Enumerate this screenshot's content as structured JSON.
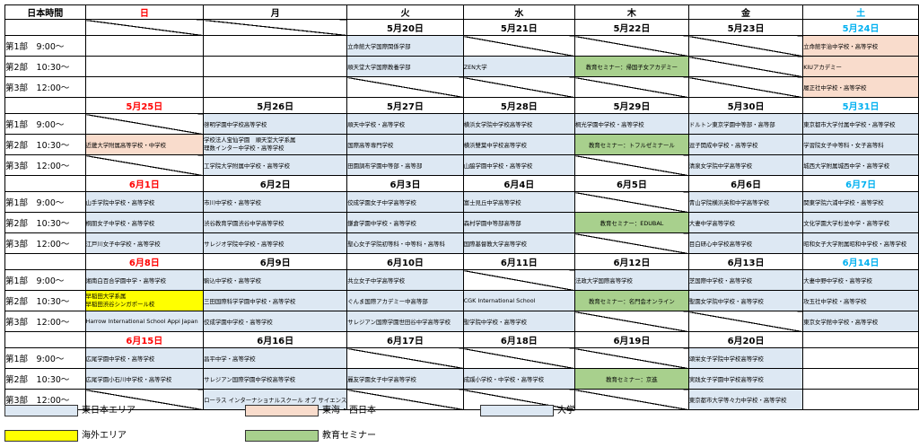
{
  "header": {
    "label": "日本時間",
    "days": [
      "日",
      "月",
      "火",
      "水",
      "木",
      "金",
      "土"
    ]
  },
  "weeks": [
    {
      "dates": [
        "",
        "",
        "5月20日",
        "5月21日",
        "5月22日",
        "5月23日",
        "5月24日"
      ],
      "slots": [
        {
          "label": "第1部　9:00～",
          "cells": [
            {
              "t": "",
              "c": ""
            },
            {
              "t": "",
              "c": ""
            },
            {
              "t": "立命館大学国際関係学部",
              "c": "univ"
            },
            {
              "t": "",
              "c": "slash"
            },
            {
              "t": "",
              "c": "slash"
            },
            {
              "t": "",
              "c": "slash"
            },
            {
              "t": "立命館宇治中学校・高等学校",
              "c": "west"
            }
          ]
        },
        {
          "label": "第2部　10:30～",
          "cells": [
            {
              "t": "",
              "c": ""
            },
            {
              "t": "",
              "c": ""
            },
            {
              "t": "順天堂大学国際教養学部",
              "c": "univ"
            },
            {
              "t": "ZEN大学",
              "c": "univ"
            },
            {
              "t": "教育セミナー：帰国子女アカデミー",
              "c": "sem"
            },
            {
              "t": "",
              "c": "slash"
            },
            {
              "t": "KIUアカデミー",
              "c": "west"
            }
          ]
        },
        {
          "label": "第3部　12:00～",
          "cells": [
            {
              "t": "",
              "c": ""
            },
            {
              "t": "",
              "c": ""
            },
            {
              "t": "",
              "c": "slash"
            },
            {
              "t": "",
              "c": "slash"
            },
            {
              "t": "",
              "c": "slash"
            },
            {
              "t": "",
              "c": "slash"
            },
            {
              "t": "履正社中学校・高等学校",
              "c": "west"
            }
          ]
        }
      ]
    },
    {
      "dates": [
        "5月25日",
        "5月26日",
        "5月27日",
        "5月28日",
        "5月29日",
        "5月30日",
        "5月31日"
      ],
      "slots": [
        {
          "label": "第1部　9:00～",
          "cells": [
            {
              "t": "",
              "c": "slash"
            },
            {
              "t": "啓明学園中学校高等学校",
              "c": "east"
            },
            {
              "t": "順天中学校・高等学校",
              "c": "east"
            },
            {
              "t": "横浜女学院中学校高等学校",
              "c": "east"
            },
            {
              "t": "桐光学園中学校・高等学校",
              "c": "east"
            },
            {
              "t": "ドルトン東京学園中等部・高等部",
              "c": "east"
            },
            {
              "t": "東京都市大学付属中学校・高等学校",
              "c": "east"
            }
          ]
        },
        {
          "label": "第2部　10:30～",
          "cells": [
            {
              "t": "近畿大学附属高等学校・中学校",
              "c": "west"
            },
            {
              "t": "学校法人宝仙学園　順天堂大学系属\n理数インター中学校・高等学校",
              "c": "east two"
            },
            {
              "t": "国際高等専門学校",
              "c": "east"
            },
            {
              "t": "横浜雙葉中学校高等学校",
              "c": "east"
            },
            {
              "t": "教育セミナー：トフルゼミナール",
              "c": "sem"
            },
            {
              "t": "逗子開成中学校・高等学校",
              "c": "east"
            },
            {
              "t": "学習院女子中等科・女子高等科",
              "c": "east"
            }
          ]
        },
        {
          "label": "第3部　12:00～",
          "cells": [
            {
              "t": "",
              "c": "slash"
            },
            {
              "t": "工学院大学附属中学校・高等学校",
              "c": "east"
            },
            {
              "t": "田園調布学園中等部・高等部",
              "c": "east"
            },
            {
              "t": "山脇学園中学校・高等学校",
              "c": "east"
            },
            {
              "t": "",
              "c": "slash"
            },
            {
              "t": "清泉女学院中学高等学校",
              "c": "east"
            },
            {
              "t": "城西大学附属城西中学・高等学校",
              "c": "east"
            }
          ]
        }
      ]
    },
    {
      "dates": [
        "6月1日",
        "6月2日",
        "6月3日",
        "6月4日",
        "6月5日",
        "6月6日",
        "6月7日"
      ],
      "slots": [
        {
          "label": "第1部　9:00～",
          "cells": [
            {
              "t": "山手学院中学校・高等学校",
              "c": "east"
            },
            {
              "t": "市川中学校・高等学校",
              "c": "east"
            },
            {
              "t": "佼成学園女子中学高等学校",
              "c": "east"
            },
            {
              "t": "富士見丘中学高等学校",
              "c": "east"
            },
            {
              "t": "",
              "c": "slash"
            },
            {
              "t": "青山学院横浜英和中学高等学校",
              "c": "east"
            },
            {
              "t": "関東学院六浦中学校・高等学校",
              "c": "east"
            }
          ]
        },
        {
          "label": "第2部　10:30～",
          "cells": [
            {
              "t": "桐朋女子中学校・高等学校",
              "c": "east"
            },
            {
              "t": "渋谷教育学園渋谷中学高等学校",
              "c": "east"
            },
            {
              "t": "鎌倉学園中学校・高等学校",
              "c": "east"
            },
            {
              "t": "森村学園中等部高等部",
              "c": "east"
            },
            {
              "t": "教育セミナー：EDUBAL",
              "c": "sem"
            },
            {
              "t": "大妻中学高等学校",
              "c": "east"
            },
            {
              "t": "文化学園大学杉並中学・高等学校",
              "c": "east"
            }
          ]
        },
        {
          "label": "第3部　12:00～",
          "cells": [
            {
              "t": "江戸川女子中学校・高等学校",
              "c": "east"
            },
            {
              "t": "サレジオ学院中学校・高等学校",
              "c": "east"
            },
            {
              "t": "聖心女子学院初等科・中等科・高等科",
              "c": "east"
            },
            {
              "t": "国際基督教大学高等学校",
              "c": "east"
            },
            {
              "t": "",
              "c": "slash"
            },
            {
              "t": "目白研心中学校高等学校",
              "c": "east"
            },
            {
              "t": "昭和女子大学附属昭和中学校・高等学校",
              "c": "east"
            }
          ]
        }
      ]
    },
    {
      "dates": [
        "6月8日",
        "6月9日",
        "6月10日",
        "6月11日",
        "6月12日",
        "6月13日",
        "6月14日"
      ],
      "slots": [
        {
          "label": "第1部　9:00～",
          "cells": [
            {
              "t": "湘南白百合学園中学・高等学校",
              "c": "east"
            },
            {
              "t": "駒込中学校・高等学校",
              "c": "east"
            },
            {
              "t": "共立女子中学高等学校",
              "c": "east"
            },
            {
              "t": "",
              "c": "slash"
            },
            {
              "t": "法政大学国際高等学校",
              "c": "east"
            },
            {
              "t": "芝国際中学校・高等学校",
              "c": "east"
            },
            {
              "t": "大妻中野中学校・高等学校",
              "c": "east"
            }
          ]
        },
        {
          "label": "第2部　10:30～",
          "cells": [
            {
              "t": "早稲田大学系属\n早稲田渋谷シンガポール校",
              "c": "intl two"
            },
            {
              "t": "三田国際科学学園中学校・高等学校",
              "c": "east"
            },
            {
              "t": "ぐんま国際アカデミー中高等部",
              "c": "east"
            },
            {
              "t": "CGK International School",
              "c": "east"
            },
            {
              "t": "教育セミナー：名門会オンライン",
              "c": "sem"
            },
            {
              "t": "聖園女学院中学校・高等学校",
              "c": "east"
            },
            {
              "t": "攻玉社中学校・高等学校",
              "c": "east"
            }
          ]
        },
        {
          "label": "第3部　12:00～",
          "cells": [
            {
              "t": "Harrow International School Appi Japan",
              "c": "east"
            },
            {
              "t": "佼成学園中学校・高等学校",
              "c": "east"
            },
            {
              "t": "サレジアン国際学園世田谷中学高等学校",
              "c": "east"
            },
            {
              "t": "聖学院中学校・高等学校",
              "c": "east"
            },
            {
              "t": "",
              "c": "slash"
            },
            {
              "t": "",
              "c": "slash"
            },
            {
              "t": "東京女学館中学校・高等学校",
              "c": "east"
            }
          ]
        }
      ]
    },
    {
      "dates": [
        "6月15日",
        "6月16日",
        "6月17日",
        "6月18日",
        "6月19日",
        "6月20日",
        ""
      ],
      "slots": [
        {
          "label": "第1部　9:00～",
          "cells": [
            {
              "t": "広尾学園中学校・高等学校",
              "c": "east"
            },
            {
              "t": "昌平中学・高等学校",
              "c": "east"
            },
            {
              "t": "",
              "c": "slash"
            },
            {
              "t": "",
              "c": "slash"
            },
            {
              "t": "",
              "c": "slash"
            },
            {
              "t": "頌栄女子学院中学校高等学校",
              "c": "east"
            },
            {
              "t": "",
              "c": ""
            }
          ]
        },
        {
          "label": "第2部　10:30～",
          "cells": [
            {
              "t": "広尾学園小石川中学校・高等学校",
              "c": "east"
            },
            {
              "t": "サレジアン国際学園中学校高等学校",
              "c": "east"
            },
            {
              "t": "麗友学園女子中学高等学校",
              "c": "east"
            },
            {
              "t": "成蹊小学校・中学校・高等学校",
              "c": "east"
            },
            {
              "t": "教育セミナー：京進",
              "c": "sem"
            },
            {
              "t": "実践女子学園中学校高等学校",
              "c": "east"
            },
            {
              "t": "",
              "c": ""
            }
          ]
        },
        {
          "label": "第3部　12:00～",
          "cells": [
            {
              "t": "",
              "c": "slash"
            },
            {
              "t": "ローラス インターナショナルスクール オブ サイエンス",
              "c": "east"
            },
            {
              "t": "",
              "c": "slash"
            },
            {
              "t": "",
              "c": "slash"
            },
            {
              "t": "",
              "c": "slash"
            },
            {
              "t": "東京都市大学等々力中学校・高等学校",
              "c": "east"
            },
            {
              "t": "",
              "c": ""
            }
          ]
        }
      ]
    }
  ],
  "legend": {
    "east": {
      "label": "東日本エリア",
      "color": "#dde8f3"
    },
    "west": {
      "label": "東海・西日本",
      "color": "#f9dccc"
    },
    "univ": {
      "label": "大学",
      "color": "#dde8f3"
    },
    "intl": {
      "label": "海外エリア",
      "color": "#ffff00"
    },
    "sem": {
      "label": "教育セミナー",
      "color": "#a8d08d"
    }
  },
  "colors": {
    "sunday": "#ff0000",
    "saturday": "#00b0f0"
  }
}
